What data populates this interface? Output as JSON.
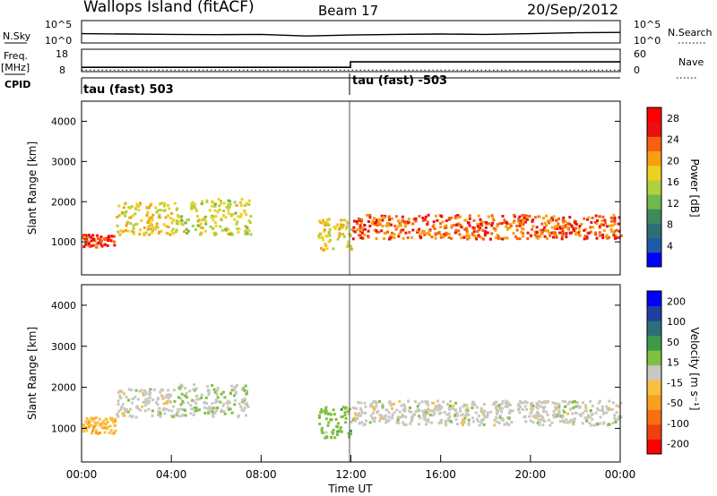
{
  "header": {
    "site": "Wallops Island (fitACF)",
    "beam": "Beam 17",
    "date": "20/Sep/2012"
  },
  "panel_labels": {
    "nsky": "N.Sky",
    "nsearch": "N.Search",
    "freq": "Freq.",
    "freq_unit": "[MHz]",
    "nave": "Nave",
    "cpid": "CPID"
  },
  "cpid_labels": [
    "tau (fast) 503",
    "tau (fast) -503"
  ],
  "colors": {
    "frame": "#000000",
    "divider": "#555555",
    "background": "#ffffff"
  },
  "chart_data": [
    {
      "type": "line",
      "name": "noise",
      "ylabel_left": "N.Sky",
      "ylabel_right": "N.Search",
      "left_ticks": [
        "10^5",
        "10^0"
      ],
      "right_ticks": [
        "10^5",
        "10^0"
      ],
      "x": [
        0,
        2,
        4,
        6,
        8,
        10,
        12,
        14,
        16,
        18,
        20,
        22,
        24
      ],
      "series": [
        {
          "name": "N.Sky",
          "values": [
            2.6,
            2.5,
            2.4,
            2.3,
            2.4,
            1.9,
            2.2,
            2.4,
            2.5,
            2.4,
            2.6,
            2.9,
            3.0
          ]
        },
        {
          "name": "N.Search",
          "values": [
            0.0,
            0.0,
            0.0,
            0.0,
            0.0,
            0.0,
            0.0,
            0.0,
            0.0,
            0.0,
            0.0,
            0.0,
            0.0
          ]
        }
      ]
    },
    {
      "type": "line",
      "name": "frequency",
      "ylabel": "Freq. [MHz]",
      "y_ticks": [
        "18",
        "8"
      ],
      "right_ticks": [
        "60",
        "0"
      ],
      "series": [
        {
          "name": "Freq.",
          "x": [
            0,
            11.98,
            11.98,
            24
          ],
          "values": [
            10.4,
            10.4,
            14.2,
            14.2
          ]
        },
        {
          "name": "Nave",
          "x": [
            0,
            24
          ],
          "values": [
            8.5,
            8.5
          ]
        }
      ]
    },
    {
      "type": "heatmap",
      "name": "power",
      "xlabel": "",
      "ylabel": "Slant Range [km]",
      "xlim": [
        0,
        24
      ],
      "ylim": [
        180,
        4500
      ],
      "y_ticks": [
        "1000",
        "2000",
        "3000",
        "4000"
      ],
      "colorbar_label": "Power [dB]",
      "colorbar_ticks": [
        "4",
        "8",
        "12",
        "16",
        "20",
        "24",
        "28"
      ],
      "colorbar_range": [
        0,
        30
      ],
      "colorscale": [
        "#0000ff",
        "#1e5aa8",
        "#2e6e78",
        "#3d8a5a",
        "#6fb84a",
        "#b0d040",
        "#f0d020",
        "#f8a010",
        "#f86010",
        "#e81010",
        "#ff0000"
      ],
      "bands": [
        {
          "time": [
            0.0,
            1.5
          ],
          "range_km": [
            900,
            1200
          ],
          "power_db": 26
        },
        {
          "time": [
            1.5,
            4.0
          ],
          "range_km": [
            1200,
            2000
          ],
          "power_db": 18
        },
        {
          "time": [
            4.0,
            7.5
          ],
          "range_km": [
            1200,
            2100
          ],
          "power_db": 16
        },
        {
          "time": [
            10.5,
            12.0
          ],
          "range_km": [
            800,
            1600
          ],
          "power_db": 18
        },
        {
          "time": [
            12.0,
            24.0
          ],
          "range_km": [
            1100,
            1700
          ],
          "power_db": 24
        }
      ]
    },
    {
      "type": "heatmap",
      "name": "velocity",
      "xlabel": "Time UT",
      "ylabel": "Slant Range [km]",
      "xlim": [
        0,
        24
      ],
      "ylim": [
        180,
        4500
      ],
      "y_ticks": [
        "1000",
        "2000",
        "3000",
        "4000"
      ],
      "x_ticks": [
        "00:00",
        "04:00",
        "08:00",
        "12:00",
        "16:00",
        "20:00",
        "00:00"
      ],
      "colorbar_label": "Velocity [m s⁻¹]",
      "colorbar_ticks": [
        "200",
        "100",
        "50",
        "15",
        "-15",
        "-50",
        "-100",
        "-200"
      ],
      "colorbar_range": [
        -250,
        250
      ],
      "colorscale": [
        "#ff0000",
        "#f04010",
        "#f87010",
        "#f8a020",
        "#f8c040",
        "#c8c8c0",
        "#80c040",
        "#3c9a4a",
        "#2e6e78",
        "#2040a0",
        "#0000ff"
      ],
      "bands": [
        {
          "time": [
            0.0,
            1.5
          ],
          "range_km": [
            900,
            1300
          ],
          "velocity": -60
        },
        {
          "time": [
            1.5,
            4.0
          ],
          "range_km": [
            1300,
            2000
          ],
          "velocity": 0
        },
        {
          "time": [
            4.0,
            7.5
          ],
          "range_km": [
            1300,
            2100
          ],
          "velocity": 20
        },
        {
          "time": [
            10.5,
            12.0
          ],
          "range_km": [
            800,
            1600
          ],
          "velocity": 50
        },
        {
          "time": [
            12.0,
            24.0
          ],
          "range_km": [
            1100,
            1700
          ],
          "velocity": 0
        }
      ]
    }
  ]
}
